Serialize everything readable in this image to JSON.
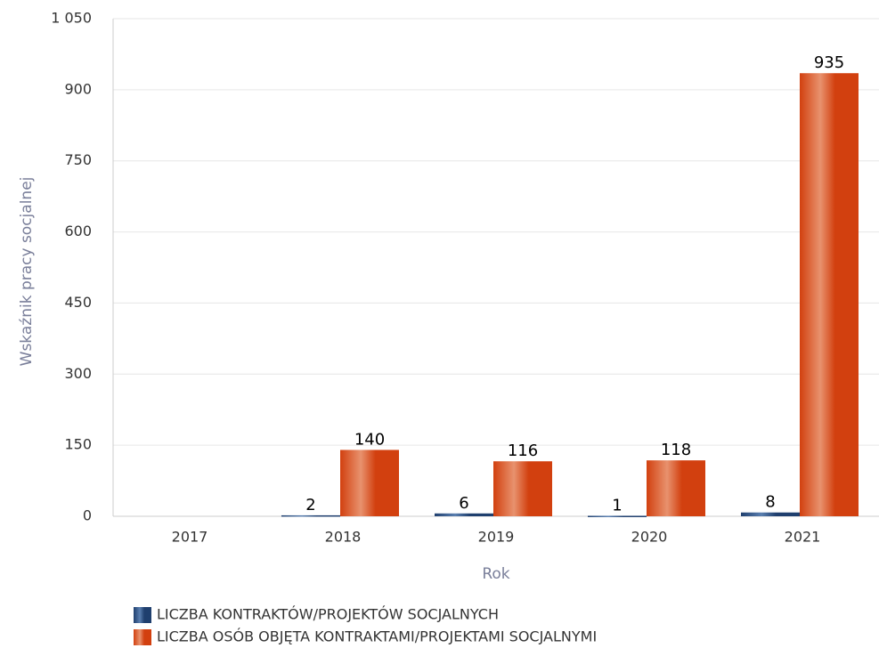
{
  "chart_data": {
    "type": "bar",
    "y_label": "Wskaźnik pracy socjalnej",
    "x_label": "Rok",
    "categories": [
      "2017",
      "2018",
      "2019",
      "2020",
      "2021"
    ],
    "series": [
      {
        "name": "LICZBA KONTRAKTÓW/PROJEKTÓW SOCJALNYCH",
        "color": "#1f3f6e",
        "values": [
          null,
          2,
          6,
          1,
          8
        ]
      },
      {
        "name": "LICZBA OSÓB OBJĘTA KONTRAKTAMI/PROJEKTAMI SOCJALNYMI",
        "color": "#d2400f",
        "values": [
          null,
          140,
          116,
          118,
          935
        ]
      }
    ],
    "ylim": [
      0,
      1050
    ],
    "yticks": [
      0,
      150,
      300,
      450,
      600,
      750,
      900,
      {
        "value": 1050,
        "label": "1 050"
      }
    ],
    "grid": true
  }
}
